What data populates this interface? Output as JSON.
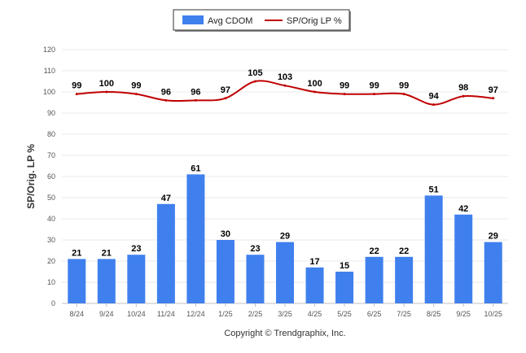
{
  "chart_data": {
    "type": "bar",
    "categories": [
      "8/24",
      "9/24",
      "10/24",
      "11/24",
      "12/24",
      "1/25",
      "2/25",
      "3/25",
      "4/25",
      "5/25",
      "6/25",
      "7/25",
      "8/25",
      "9/25",
      "10/25"
    ],
    "series": [
      {
        "name": "Avg CDOM",
        "type": "bar",
        "values": [
          21,
          21,
          23,
          47,
          61,
          30,
          23,
          29,
          17,
          15,
          22,
          22,
          51,
          42,
          29
        ]
      },
      {
        "name": "SP/Orig LP %",
        "type": "line",
        "values": [
          99,
          100,
          99,
          96,
          96,
          97,
          105,
          103,
          100,
          99,
          99,
          99,
          94,
          98,
          97
        ]
      }
    ],
    "ylabel": "SP/Orig. LP %",
    "ylim": [
      0,
      120
    ],
    "yticks": [
      0,
      10,
      20,
      30,
      40,
      50,
      60,
      70,
      80,
      90,
      100,
      110,
      120
    ],
    "grid": true,
    "legend_position": "top-center"
  },
  "colors": {
    "bar": "#4080ee",
    "line": "#c00000",
    "grid": "#e8e8e8",
    "axis": "#c0c0c0"
  },
  "footer": {
    "copyright": "Copyright © Trendgraphix, Inc."
  }
}
